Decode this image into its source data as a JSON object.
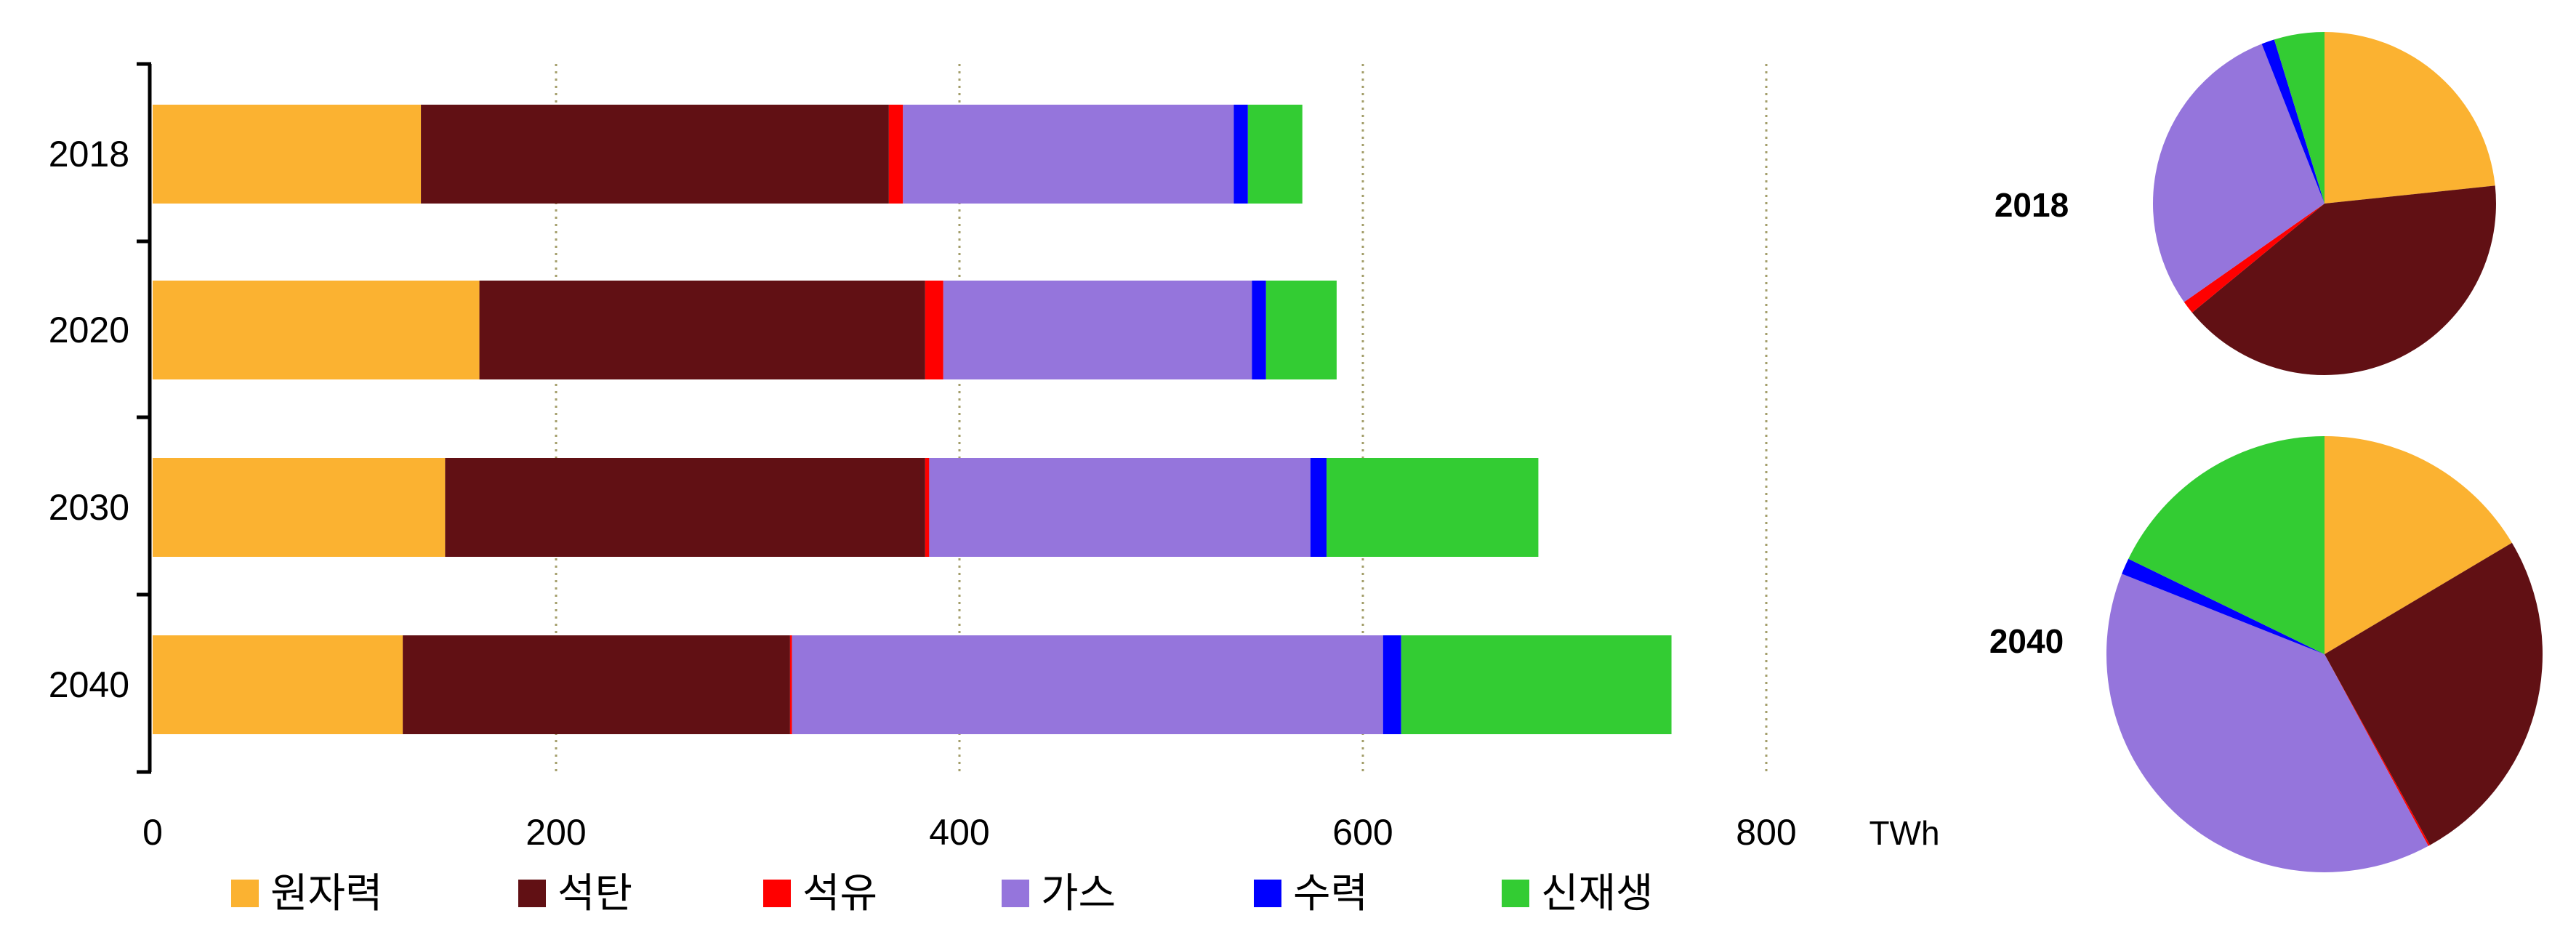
{
  "chart_data": [
    {
      "type": "bar",
      "orientation": "horizontal",
      "stacked": true,
      "categories": [
        "2018",
        "2020",
        "2030",
        "2040"
      ],
      "series": [
        {
          "name": "원자력",
          "color": "#FBB231",
          "values": [
            133,
            162,
            145,
            124
          ]
        },
        {
          "name": "석탄",
          "color": "#611014",
          "values": [
            232,
            221,
            238,
            192
          ]
        },
        {
          "name": "석유",
          "color": "#FF0000",
          "values": [
            7,
            9,
            2,
            1
          ]
        },
        {
          "name": "가스",
          "color": "#9575DC",
          "values": [
            164,
            153,
            189,
            293
          ]
        },
        {
          "name": "수력",
          "color": "#0000FF",
          "values": [
            7,
            7,
            8,
            9
          ]
        },
        {
          "name": "신재생",
          "color": "#33CC33",
          "values": [
            27,
            35,
            105,
            134
          ]
        }
      ],
      "x_ticks": [
        "0",
        "200",
        "400",
        "600",
        "800"
      ],
      "xlim": [
        0,
        800
      ],
      "unit": "TWh",
      "grid": "vertical dotted",
      "legend": "bottom"
    },
    {
      "type": "pie",
      "label": "2018",
      "categories": [
        "원자력",
        "석탄",
        "석유",
        "가스",
        "수력",
        "신재생"
      ],
      "values": [
        133,
        232,
        7,
        164,
        7,
        27
      ]
    },
    {
      "type": "pie",
      "label": "2040",
      "categories": [
        "원자력",
        "석탄",
        "석유",
        "가스",
        "수력",
        "신재생"
      ],
      "values": [
        124,
        192,
        1,
        293,
        9,
        134
      ]
    }
  ]
}
